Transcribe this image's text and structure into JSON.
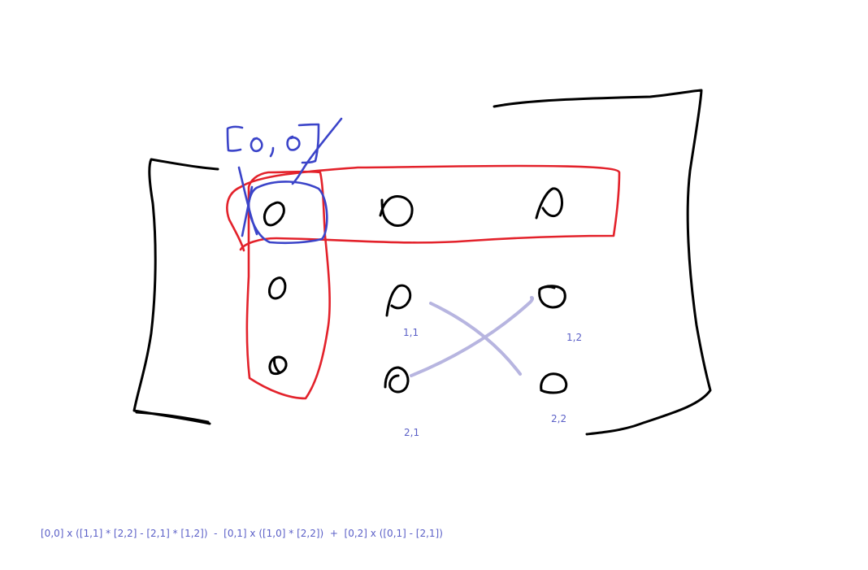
{
  "labels": {
    "cell_1_1": "1,1",
    "cell_1_2": "1,2",
    "cell_2_1": "2,1",
    "cell_2_2": "2,2"
  },
  "formula": "[0,0] x ([1,1] * [2,2] - [2,1] * [1,2])  -  [0,1] x ([1,0] * [2,2])  +  [0,2] x ([0,1] - [2,1])",
  "colors": {
    "bracket_ink": "#000000",
    "row_column_highlight": "#e3222b",
    "pivot_highlight": "#3b44c9",
    "cross_multiply": "#b7b5e0",
    "label_text": "#5a5fc7"
  }
}
